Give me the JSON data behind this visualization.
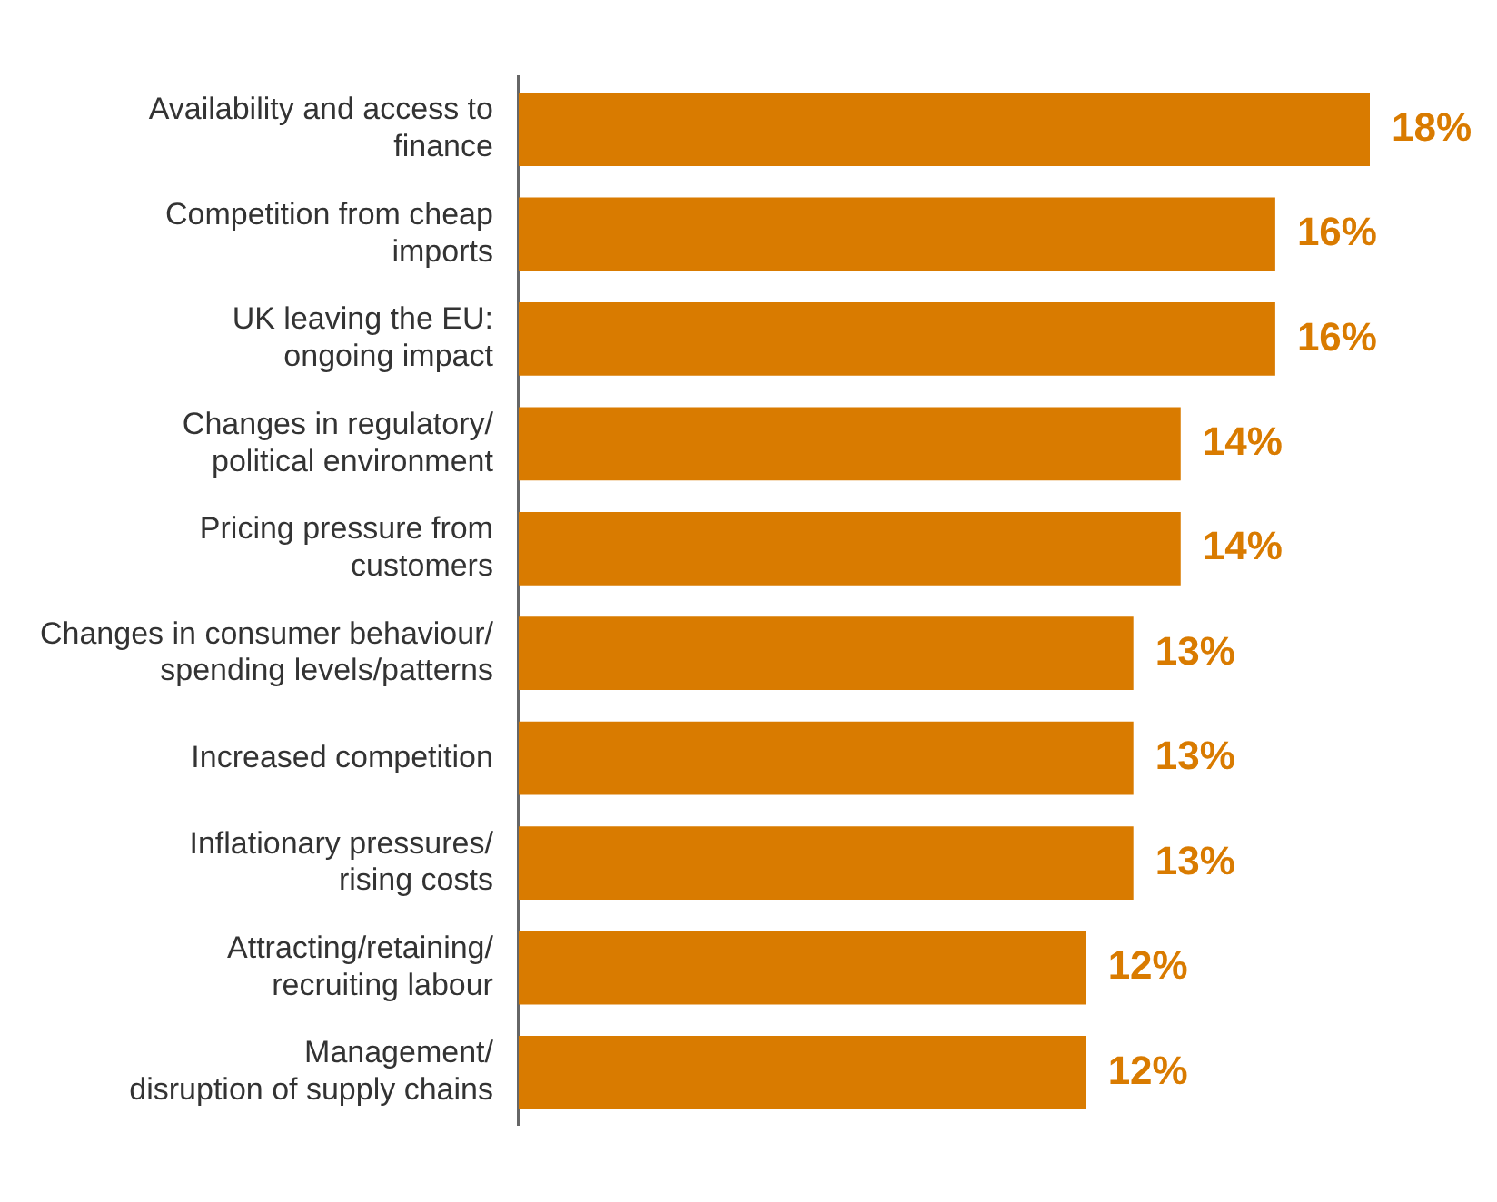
{
  "chart_data": {
    "type": "bar",
    "orientation": "horizontal",
    "categories": [
      "Availability and access to\nfinance",
      "Competition from cheap\nimports",
      "UK leaving the EU:\nongoing impact",
      "Changes in regulatory/\npolitical environment",
      "Pricing pressure from\ncustomers",
      "Changes in consumer behaviour/\nspending levels/patterns",
      "Increased competition",
      "Inflationary pressures/\nrising costs",
      "Attracting/retaining/\nrecruiting labour",
      "Management/\ndisruption of supply chains"
    ],
    "values": [
      18,
      16,
      16,
      14,
      14,
      13,
      13,
      13,
      12,
      12
    ],
    "value_labels": [
      "18%",
      "16%",
      "16%",
      "14%",
      "14%",
      "13%",
      "13%",
      "13%",
      "12%",
      "12%"
    ],
    "color": "#d97b00",
    "grid": false,
    "legend": false
  }
}
